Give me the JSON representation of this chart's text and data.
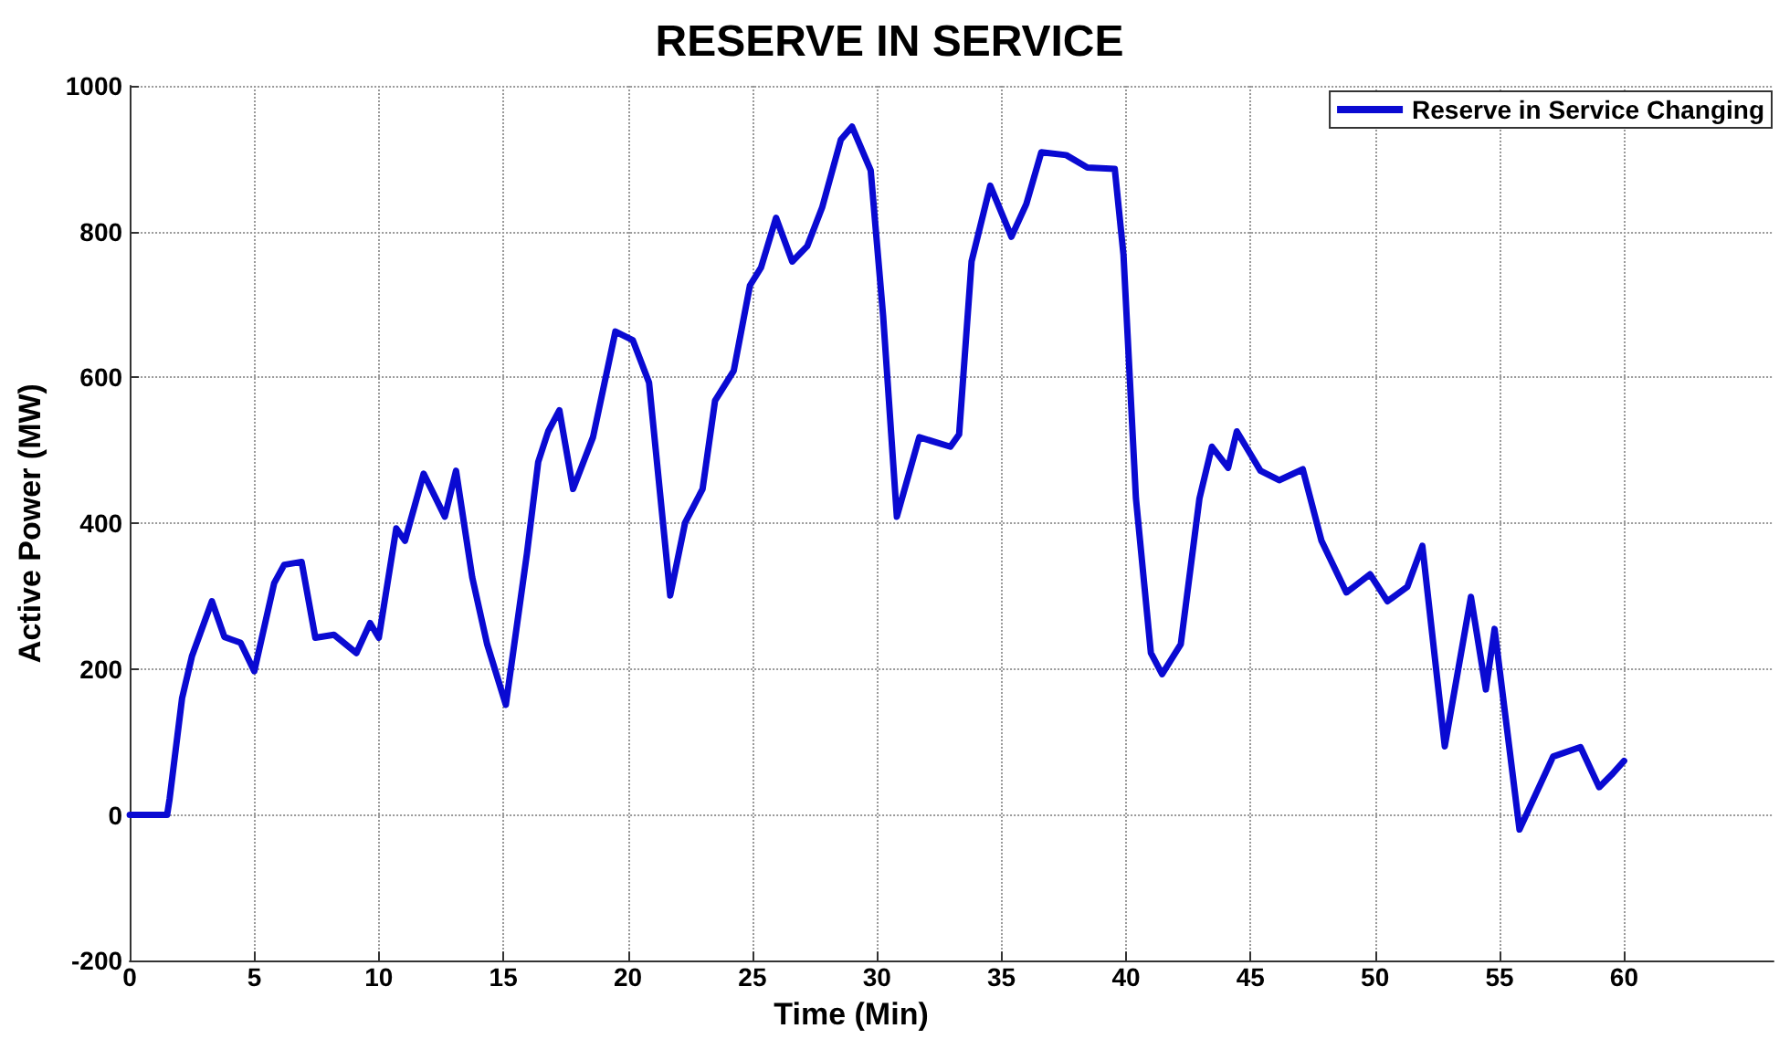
{
  "chart_data": {
    "type": "line",
    "title": "RESERVE IN SERVICE",
    "xlabel": "Time (Min)",
    "ylabel": "Active Power (MW)",
    "xlim": [
      0,
      66
    ],
    "xticks": [
      0,
      5,
      10,
      15,
      20,
      25,
      30,
      35,
      40,
      45,
      50,
      55,
      60
    ],
    "ylim": [
      -200,
      1000
    ],
    "yticks": [
      -200,
      0,
      200,
      400,
      600,
      800,
      1000
    ],
    "grid": true,
    "legend": "top right",
    "marker": "none",
    "line_style": "solid",
    "series": [
      {
        "name": "Reserve in Service Changing",
        "color": "#0a0ad2",
        "x": [
          0,
          1.5,
          1.6,
          2.1,
          2.5,
          3.3,
          3.8,
          4.45,
          5.0,
          5.8,
          6.2,
          6.9,
          7.45,
          8.2,
          9.1,
          9.65,
          10.0,
          10.7,
          11.05,
          11.8,
          12.65,
          13.1,
          13.75,
          14.35,
          15.1,
          15.95,
          16.4,
          16.8,
          17.25,
          17.8,
          18.6,
          19.5,
          20.2,
          20.85,
          21.7,
          22.3,
          23.0,
          23.5,
          24.25,
          24.9,
          25.35,
          25.95,
          26.6,
          27.2,
          27.8,
          28.55,
          29.0,
          29.75,
          30.25,
          30.8,
          31.7,
          32.95,
          33.3,
          33.8,
          34.55,
          35.4,
          36.0,
          36.6,
          37.6,
          38.45,
          39.55,
          39.9,
          40.4,
          41.0,
          41.45,
          42.2,
          42.95,
          43.45,
          44.1,
          44.45,
          45.4,
          46.15,
          47.1,
          47.85,
          48.85,
          49.8,
          50.5,
          51.3,
          51.9,
          52.8,
          53.85,
          54.45,
          54.8,
          55.8,
          57.15,
          58.25,
          59.0,
          59.5,
          60.0
        ],
        "values": [
          0,
          0,
          22,
          160,
          218,
          293,
          244,
          236,
          197,
          318,
          343,
          347,
          243,
          247,
          222,
          263,
          243,
          393,
          376,
          468,
          409,
          472,
          326,
          234,
          151,
          359,
          484,
          526,
          555,
          447,
          518,
          663,
          651,
          593,
          301,
          401,
          447,
          568,
          609,
          726,
          751,
          819,
          759,
          780,
          833,
          926,
          944,
          884,
          684,
          409,
          518,
          505,
          522,
          759,
          863,
          793,
          838,
          909,
          905,
          888,
          886,
          768,
          434,
          222,
          193,
          234,
          434,
          505,
          476,
          526,
          472,
          459,
          474,
          376,
          305,
          330,
          293,
          313,
          369,
          94,
          299,
          172,
          255,
          -20,
          80,
          93,
          38,
          55,
          74
        ]
      }
    ]
  }
}
